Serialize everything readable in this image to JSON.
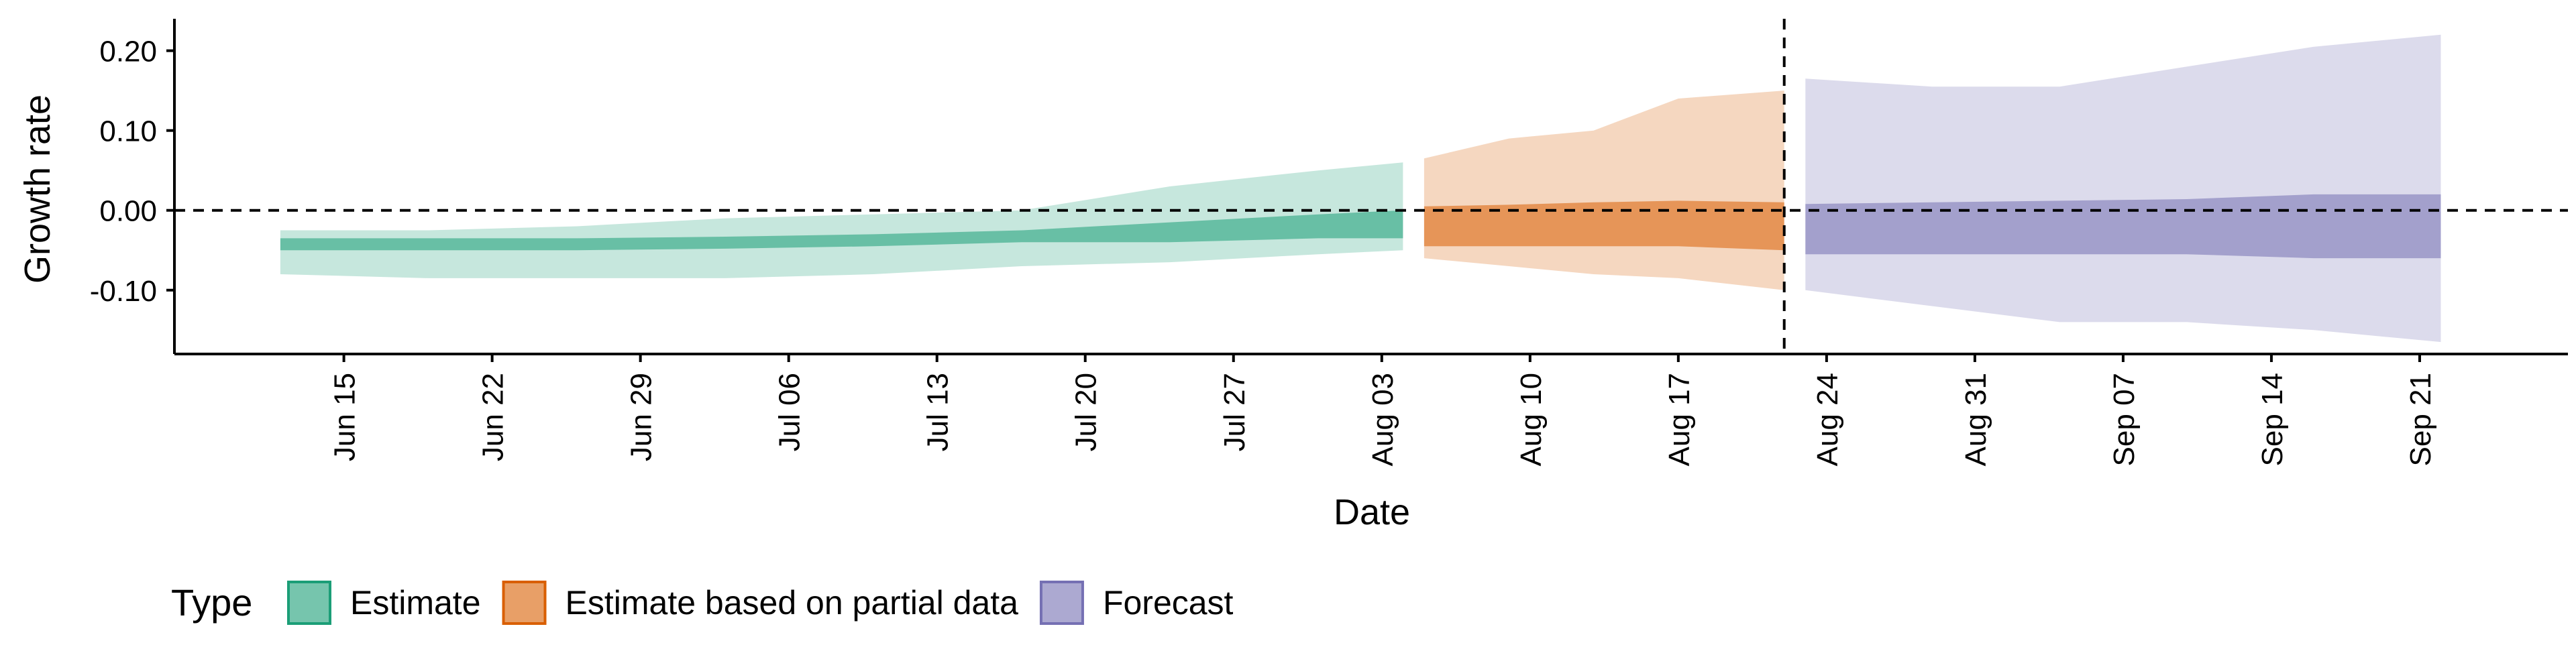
{
  "chart_data": {
    "type": "area",
    "xlabel": "Date",
    "ylabel": "Growth rate",
    "ylim": [
      -0.18,
      0.24
    ],
    "xlim": [
      "2020-06-07",
      "2020-09-28"
    ],
    "yticks": [
      -0.1,
      0.0,
      0.1,
      0.2
    ],
    "ytick_labels": [
      "-0.10",
      "0.00",
      "0.10",
      "0.20"
    ],
    "xticks": [
      "2020-06-15",
      "2020-06-22",
      "2020-06-29",
      "2020-07-06",
      "2020-07-13",
      "2020-07-20",
      "2020-07-27",
      "2020-08-03",
      "2020-08-10",
      "2020-08-17",
      "2020-08-24",
      "2020-08-31",
      "2020-09-07",
      "2020-09-14",
      "2020-09-21"
    ],
    "xtick_labels": [
      "Jun 15",
      "Jun 22",
      "Jun 29",
      "Jul 06",
      "Jul 13",
      "Jul 20",
      "Jul 27",
      "Aug 03",
      "Aug 10",
      "Aug 17",
      "Aug 24",
      "Aug 31",
      "Sep 07",
      "Sep 14",
      "Sep 21"
    ],
    "reference_lines": {
      "horizontal_y": 0.0,
      "vertical_date": "2020-08-22"
    },
    "grid": false,
    "legend": {
      "title": "Type",
      "position": "bottom"
    },
    "series": [
      {
        "name": "Estimate",
        "color": "#1B9E77",
        "x": [
          "2020-06-12",
          "2020-06-19",
          "2020-06-26",
          "2020-07-03",
          "2020-07-10",
          "2020-07-17",
          "2020-07-24",
          "2020-07-31",
          "2020-08-04"
        ],
        "lower90": [
          -0.08,
          -0.085,
          -0.085,
          -0.085,
          -0.08,
          -0.07,
          -0.065,
          -0.055,
          -0.05
        ],
        "lower50": [
          -0.05,
          -0.05,
          -0.05,
          -0.048,
          -0.045,
          -0.04,
          -0.04,
          -0.035,
          -0.035
        ],
        "upper50": [
          -0.035,
          -0.035,
          -0.035,
          -0.033,
          -0.03,
          -0.025,
          -0.015,
          -0.005,
          0.0
        ],
        "upper90": [
          -0.025,
          -0.025,
          -0.02,
          -0.01,
          -0.005,
          0.0,
          0.03,
          0.05,
          0.06
        ]
      },
      {
        "name": "Estimate based on partial data",
        "color": "#D95F02",
        "x": [
          "2020-08-05",
          "2020-08-09",
          "2020-08-13",
          "2020-08-17",
          "2020-08-22"
        ],
        "lower90": [
          -0.06,
          -0.07,
          -0.08,
          -0.085,
          -0.1
        ],
        "lower50": [
          -0.045,
          -0.045,
          -0.045,
          -0.045,
          -0.05
        ],
        "upper50": [
          0.005,
          0.007,
          0.01,
          0.012,
          0.01
        ],
        "upper90": [
          0.065,
          0.09,
          0.1,
          0.14,
          0.15
        ]
      },
      {
        "name": "Forecast",
        "color": "#7570B3",
        "x": [
          "2020-08-23",
          "2020-08-29",
          "2020-09-04",
          "2020-09-10",
          "2020-09-16",
          "2020-09-22"
        ],
        "lower90": [
          -0.1,
          -0.12,
          -0.14,
          -0.14,
          -0.15,
          -0.165
        ],
        "lower50": [
          -0.055,
          -0.055,
          -0.055,
          -0.055,
          -0.06,
          -0.06
        ],
        "upper50": [
          0.008,
          0.01,
          0.012,
          0.014,
          0.02,
          0.02
        ],
        "upper90": [
          0.165,
          0.155,
          0.155,
          0.18,
          0.205,
          0.22
        ]
      }
    ]
  }
}
